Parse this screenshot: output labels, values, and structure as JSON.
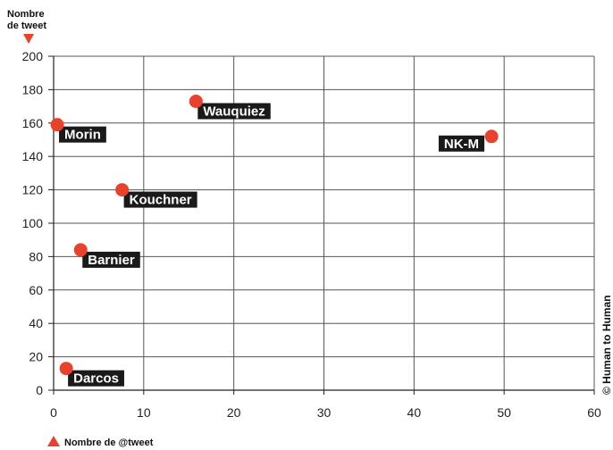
{
  "chart_data": {
    "type": "scatter",
    "xlabel": "Nombre de @tweet",
    "ylabel_line1": "Nombre",
    "ylabel_line2": "de tweet",
    "xlim": [
      0,
      60
    ],
    "ylim": [
      0,
      200
    ],
    "xticks": [
      0,
      10,
      20,
      30,
      40,
      50,
      60
    ],
    "yticks": [
      0,
      20,
      40,
      60,
      80,
      100,
      120,
      140,
      160,
      180,
      200
    ],
    "grid": true,
    "point_color": "#e8412c",
    "label_bg": "#1a1a1a",
    "points": [
      {
        "label": "Morin",
        "x": 0.4,
        "y": 159,
        "label_side": "right"
      },
      {
        "label": "Wauquiez",
        "x": 15.8,
        "y": 173,
        "label_side": "right"
      },
      {
        "label": "NK-M",
        "x": 48.6,
        "y": 152,
        "label_side": "left"
      },
      {
        "label": "Kouchner",
        "x": 7.6,
        "y": 120,
        "label_side": "right"
      },
      {
        "label": "Barnier",
        "x": 3.0,
        "y": 84,
        "label_side": "right"
      },
      {
        "label": "Darcos",
        "x": 1.4,
        "y": 13,
        "label_side": "right"
      }
    ]
  },
  "credit": "© Human to Human"
}
